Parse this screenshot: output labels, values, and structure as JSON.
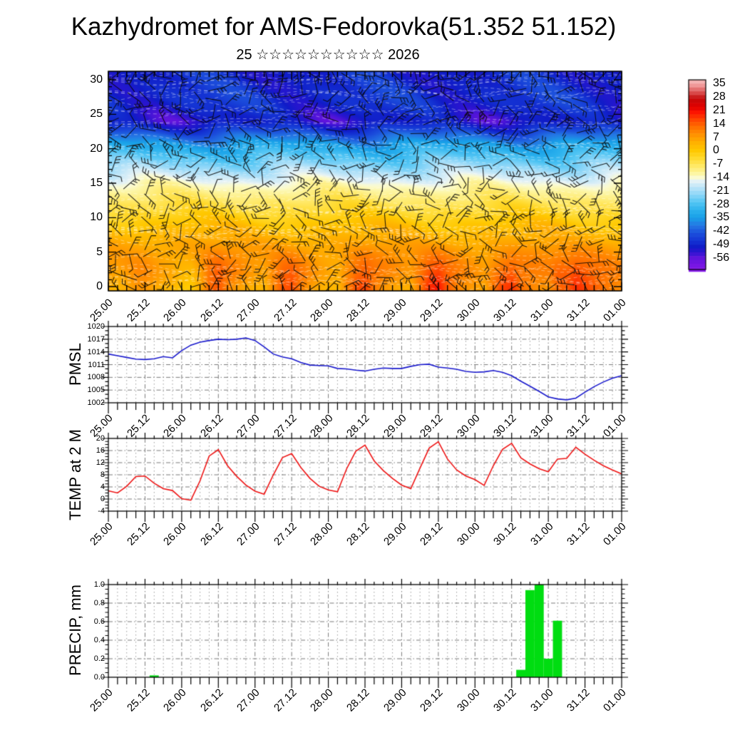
{
  "title": "Kazhydromet for AMS-Fedorovka(51.352 51.152)",
  "subtitle": "25 ☆☆☆☆☆☆☆☆☆☆ 2026",
  "time_axis": {
    "hours_total": 168,
    "step_hours": 3,
    "label_every_hours": 12,
    "labels": [
      "25.00",
      "25.12",
      "26.00",
      "26.12",
      "27.00",
      "27.12",
      "28.00",
      "28.12",
      "29.00",
      "29.12",
      "30.00",
      "30.12",
      "31.00",
      "31.12",
      "01.00"
    ]
  },
  "colors": {
    "pmsl_line": "#1818cc",
    "temp_line": "#ee1414",
    "precip_bar": "#00dd11",
    "grid": "#7a7a7a",
    "grid_minor": "#9a9a9a",
    "frame": "#000000",
    "barb": "rgba(8,8,8,0.88)",
    "streak": "rgba(255,255,255,0.5)"
  },
  "chart_data": [
    {
      "id": "cross_section",
      "type": "heatmap",
      "ylabel": "",
      "ylim": [
        0,
        30
      ],
      "yticks": [
        0,
        5,
        10,
        15,
        20,
        25,
        30
      ],
      "ytick_labels": [
        "0",
        "5",
        "10",
        "15",
        "20",
        "25",
        "30"
      ],
      "colorbar_ticks": [
        35,
        28,
        21,
        14,
        7,
        0,
        -7,
        -14,
        -21,
        -28,
        -35,
        -42,
        -49,
        -56
      ],
      "colorbar_tick_labels": [
        "35",
        "28",
        "21",
        "14",
        "7",
        "0",
        "-7",
        "-14",
        "-21",
        "-28",
        "-35",
        "-42",
        "-49",
        "-56"
      ],
      "colorbar_value_range": [
        37,
        -62
      ],
      "palette": [
        [
          38,
          "#f8cccc"
        ],
        [
          34,
          "#f09898"
        ],
        [
          30,
          "#d84848"
        ],
        [
          27,
          "#c40808"
        ],
        [
          23,
          "#e00000"
        ],
        [
          20,
          "#fc1400"
        ],
        [
          16,
          "#ff4600"
        ],
        [
          12,
          "#ff7200"
        ],
        [
          8,
          "#ff9400"
        ],
        [
          4,
          "#ffb200"
        ],
        [
          0,
          "#ffc800"
        ],
        [
          -4,
          "#ffda2e"
        ],
        [
          -8,
          "#ffe966"
        ],
        [
          -12,
          "#fdf6a4"
        ],
        [
          -14,
          "#fbfbd0"
        ],
        [
          -16,
          "#e4f2f6"
        ],
        [
          -19,
          "#c0e6f8"
        ],
        [
          -23,
          "#8cd6f8"
        ],
        [
          -27,
          "#54c6f4"
        ],
        [
          -31,
          "#2cb2ee"
        ],
        [
          -35,
          "#18a0e8"
        ],
        [
          -39,
          "#2478e4"
        ],
        [
          -43,
          "#1c50dc"
        ],
        [
          -47,
          "#1434d4"
        ],
        [
          -50,
          "#101cc8"
        ],
        [
          -53,
          "#2c14d0"
        ],
        [
          -56,
          "#6014dc"
        ],
        [
          -62,
          "#8418e8"
        ]
      ],
      "vertical_profile_c": [
        [
          0,
          14
        ],
        [
          3,
          10
        ],
        [
          6,
          6
        ],
        [
          9,
          1
        ],
        [
          12,
          -6
        ],
        [
          14,
          -11
        ],
        [
          15,
          -14
        ],
        [
          16,
          -17.5
        ],
        [
          17,
          -21
        ],
        [
          18,
          -24.5
        ],
        [
          19,
          -28
        ],
        [
          20,
          -31.5
        ],
        [
          21,
          -36
        ],
        [
          22,
          -41
        ],
        [
          23,
          -47
        ],
        [
          24,
          -51.5
        ],
        [
          25,
          -50.5
        ],
        [
          26,
          -48.5
        ],
        [
          27,
          -47.5
        ],
        [
          28,
          -47.5
        ],
        [
          29,
          -48
        ],
        [
          30,
          -48.5
        ],
        [
          32,
          -49
        ]
      ],
      "wind_barbs": {
        "cols": 31,
        "rows": 20,
        "shaft_len": 22,
        "seed": 11
      },
      "streaks": {
        "count": 60,
        "seed": 5
      }
    },
    {
      "id": "pmsl",
      "type": "line",
      "ylabel": "PMSL",
      "ylim": [
        1002,
        1020
      ],
      "yticks": [
        1002,
        1005,
        1008,
        1011,
        1014,
        1017,
        1020
      ],
      "ytick_labels": [
        "1002",
        "1005",
        "1008",
        "1011",
        "1014",
        "1017",
        "1020"
      ],
      "minors_per_gap": 2,
      "values": [
        1013.5,
        1013.1,
        1012.7,
        1012.3,
        1012.2,
        1012.4,
        1012.9,
        1012.6,
        1014.3,
        1015.6,
        1016.3,
        1016.7,
        1017.0,
        1016.9,
        1017.0,
        1017.3,
        1016.7,
        1015.2,
        1013.5,
        1012.8,
        1012.4,
        1011.5,
        1010.9,
        1010.8,
        1010.7,
        1010.1,
        1010.0,
        1009.7,
        1009.5,
        1009.9,
        1010.2,
        1010.1,
        1010.1,
        1010.6,
        1011.0,
        1011.1,
        1010.4,
        1010.2,
        1009.9,
        1009.4,
        1009.2,
        1009.3,
        1009.6,
        1009.2,
        1008.4,
        1007.1,
        1005.9,
        1004.7,
        1003.4,
        1002.9,
        1002.7,
        1003.1,
        1004.5,
        1005.8,
        1006.9,
        1007.8,
        1008.4
      ]
    },
    {
      "id": "temp_2m",
      "type": "line",
      "ylabel": "TEMP at 2 M",
      "ylim": [
        -4,
        20
      ],
      "yticks": [
        -4,
        0,
        4,
        8,
        12,
        16,
        20
      ],
      "ytick_labels": [
        "-4",
        "0",
        "4",
        "8",
        "12",
        "16",
        "20"
      ],
      "minors_per_gap": 3,
      "values": [
        2.7,
        2.0,
        4.2,
        7.4,
        7.6,
        5.2,
        3.4,
        2.8,
        0.1,
        -0.4,
        6.0,
        14.2,
        16.3,
        11.0,
        7.5,
        4.6,
        2.6,
        1.6,
        8.0,
        13.7,
        15.0,
        10.4,
        6.8,
        4.2,
        3.0,
        2.4,
        10.0,
        15.8,
        17.8,
        12.6,
        9.4,
        6.8,
        4.6,
        3.4,
        10.2,
        16.8,
        18.9,
        13.2,
        9.6,
        7.6,
        6.4,
        4.5,
        11.0,
        16.4,
        18.4,
        13.6,
        11.6,
        10.0,
        9.0,
        13.2,
        13.4,
        17.1,
        14.8,
        12.8,
        11.0,
        9.6,
        8.3
      ]
    },
    {
      "id": "precip",
      "type": "bar",
      "ylabel": "PRECIP, mm",
      "ylim": [
        0,
        1.0
      ],
      "yticks": [
        0,
        0.2,
        0.4,
        0.6,
        0.8,
        1.0
      ],
      "ytick_labels": [
        "0.0",
        "0.2",
        "0.4",
        "0.6",
        "0.8",
        "1.0"
      ],
      "minors_per_gap": 3,
      "values": [
        0,
        0,
        0,
        0,
        0,
        0.02,
        0,
        0,
        0,
        0,
        0,
        0,
        0,
        0,
        0,
        0,
        0,
        0,
        0,
        0,
        0,
        0,
        0,
        0,
        0,
        0,
        0,
        0,
        0,
        0,
        0,
        0,
        0,
        0,
        0,
        0,
        0,
        0,
        0,
        0,
        0,
        0,
        0,
        0,
        0,
        0.08,
        0.94,
        1.0,
        0.2,
        0.61,
        0,
        0,
        0,
        0,
        0,
        0,
        0
      ]
    }
  ]
}
